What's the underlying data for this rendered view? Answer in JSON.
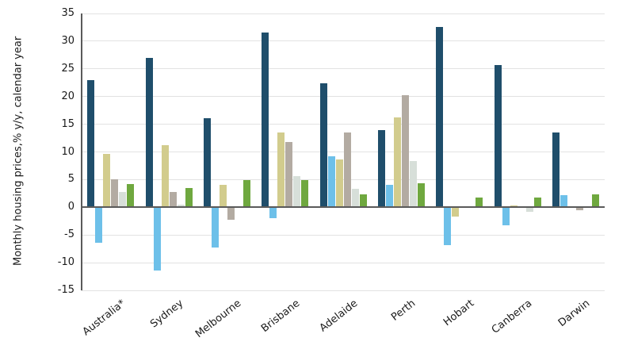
{
  "chart": {
    "ylabel_line1": "Monthly housing prices,",
    "ylabel_line2": "% y/y, calendar year"
  },
  "chart_data": {
    "type": "bar",
    "title": "",
    "xlabel": "",
    "ylabel": "Monthly housing prices, % y/y, calendar year",
    "categories": [
      "Australia*",
      "Sydney",
      "Melbourne",
      "Brisbane",
      "Adelaide",
      "Perth",
      "Hobart",
      "Canberra",
      "Darwin"
    ],
    "series": [
      {
        "name": "series-1-navy",
        "color": "#1f4e6b",
        "values": [
          23.0,
          27.0,
          16.1,
          31.5,
          22.4,
          14.0,
          32.6,
          25.7,
          13.5
        ]
      },
      {
        "name": "series-2-light-blue",
        "color": "#6dc0e9",
        "values": [
          -6.4,
          -11.4,
          -7.2,
          -2.0,
          9.2,
          4.1,
          -6.9,
          -3.2,
          2.2
        ]
      },
      {
        "name": "series-3-khaki",
        "color": "#d2cc8d",
        "values": [
          9.7,
          11.2,
          4.1,
          13.5,
          8.7,
          16.2,
          -1.7,
          0.4,
          0.0
        ]
      },
      {
        "name": "series-4-taupe",
        "color": "#b3aba2",
        "values": [
          5.0,
          2.8,
          -2.3,
          11.8,
          13.5,
          20.2,
          0.0,
          0.0,
          -0.5
        ]
      },
      {
        "name": "series-5-pale-grey",
        "color": "#d7dfd9",
        "values": [
          2.7,
          0.5,
          0.1,
          5.7,
          3.4,
          8.4,
          0.0,
          -0.8,
          0.1
        ]
      },
      {
        "name": "series-6-green",
        "color": "#6fa83f",
        "values": [
          4.2,
          3.5,
          4.9,
          4.9,
          2.4,
          4.3,
          1.8,
          1.7,
          2.4
        ]
      }
    ],
    "ylim": [
      -15,
      35
    ],
    "yticks": [
      35,
      30,
      25,
      20,
      15,
      10,
      5,
      0,
      -5,
      -10,
      -15
    ],
    "grid": "horizontal",
    "legend_position": "none",
    "colors": {
      "background": "#ffffff",
      "gridline": "#e2e2e2",
      "axis_line": "#5a5a5a",
      "tick_text": "#1a1a1a"
    }
  }
}
